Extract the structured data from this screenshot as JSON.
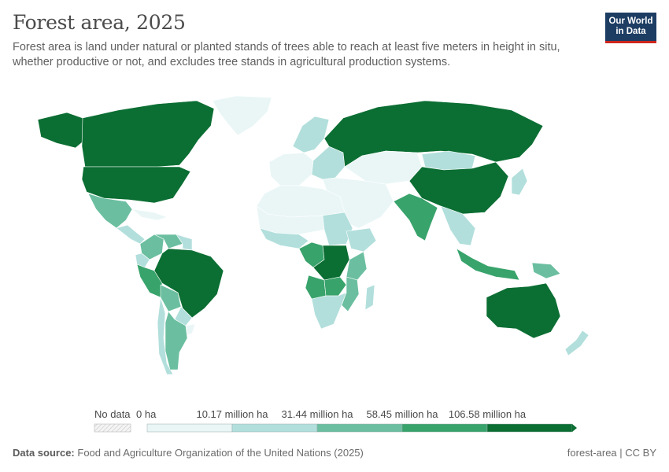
{
  "title": "Forest area, 2025",
  "subtitle": "Forest area is land under natural or planted stands of trees able to reach at least five meters in height in situ, whether productive or not, and excludes tree stands in agricultural production systems.",
  "logo": {
    "line1": "Our World",
    "line2": "in Data"
  },
  "legend": {
    "no_data_label": "No data",
    "bins": [
      "0 ha",
      "10.17 million ha",
      "31.44 million ha",
      "58.45 million ha",
      "106.58 million ha"
    ],
    "colors": [
      "#eaf6f6",
      "#b2dfdc",
      "#6bbfa0",
      "#38a36b",
      "#0b6e33"
    ],
    "no_data_color": "#dddddd"
  },
  "footer": {
    "source_label": "Data source:",
    "source_text": "Food and Agriculture Organization of the United Nations (2025)",
    "slug": "forest-area | CC BY"
  },
  "regions": [
    {
      "name": "Canada",
      "bin": 4
    },
    {
      "name": "United States",
      "bin": 4
    },
    {
      "name": "Greenland",
      "bin": 0
    },
    {
      "name": "Alaska",
      "bin": 4
    },
    {
      "name": "Mexico",
      "bin": 2
    },
    {
      "name": "Central America",
      "bin": 1
    },
    {
      "name": "Caribbean",
      "bin": 0
    },
    {
      "name": "Brazil",
      "bin": 4
    },
    {
      "name": "Colombia",
      "bin": 2
    },
    {
      "name": "Venezuela",
      "bin": 2
    },
    {
      "name": "Guianas",
      "bin": 1
    },
    {
      "name": "Peru",
      "bin": 3
    },
    {
      "name": "Ecuador",
      "bin": 1
    },
    {
      "name": "Bolivia",
      "bin": 2
    },
    {
      "name": "Paraguay",
      "bin": 1
    },
    {
      "name": "Argentina",
      "bin": 2
    },
    {
      "name": "Chile",
      "bin": 1
    },
    {
      "name": "Uruguay",
      "bin": 0
    },
    {
      "name": "Russia",
      "bin": 4
    },
    {
      "name": "Scandinavia",
      "bin": 1
    },
    {
      "name": "Western Europe",
      "bin": 0
    },
    {
      "name": "Eastern Europe",
      "bin": 1
    },
    {
      "name": "Middle East",
      "bin": 0
    },
    {
      "name": "Central Asia",
      "bin": 0
    },
    {
      "name": "Mongolia",
      "bin": 1
    },
    {
      "name": "China",
      "bin": 4
    },
    {
      "name": "India",
      "bin": 3
    },
    {
      "name": "Southeast Asia",
      "bin": 1
    },
    {
      "name": "Indonesia",
      "bin": 3
    },
    {
      "name": "Papua New Guinea",
      "bin": 2
    },
    {
      "name": "Japan",
      "bin": 1
    },
    {
      "name": "Australia",
      "bin": 4
    },
    {
      "name": "New Zealand",
      "bin": 1
    },
    {
      "name": "North Africa",
      "bin": 0
    },
    {
      "name": "Sahel",
      "bin": 0
    },
    {
      "name": "West Africa",
      "bin": 1
    },
    {
      "name": "Sudan",
      "bin": 1
    },
    {
      "name": "Ethiopia",
      "bin": 1
    },
    {
      "name": "DR Congo",
      "bin": 4
    },
    {
      "name": "Congo Basin",
      "bin": 3
    },
    {
      "name": "Angola",
      "bin": 3
    },
    {
      "name": "Zambia",
      "bin": 3
    },
    {
      "name": "Tanzania",
      "bin": 2
    },
    {
      "name": "Mozambique",
      "bin": 2
    },
    {
      "name": "Southern Africa",
      "bin": 1
    },
    {
      "name": "Madagascar",
      "bin": 1
    }
  ]
}
